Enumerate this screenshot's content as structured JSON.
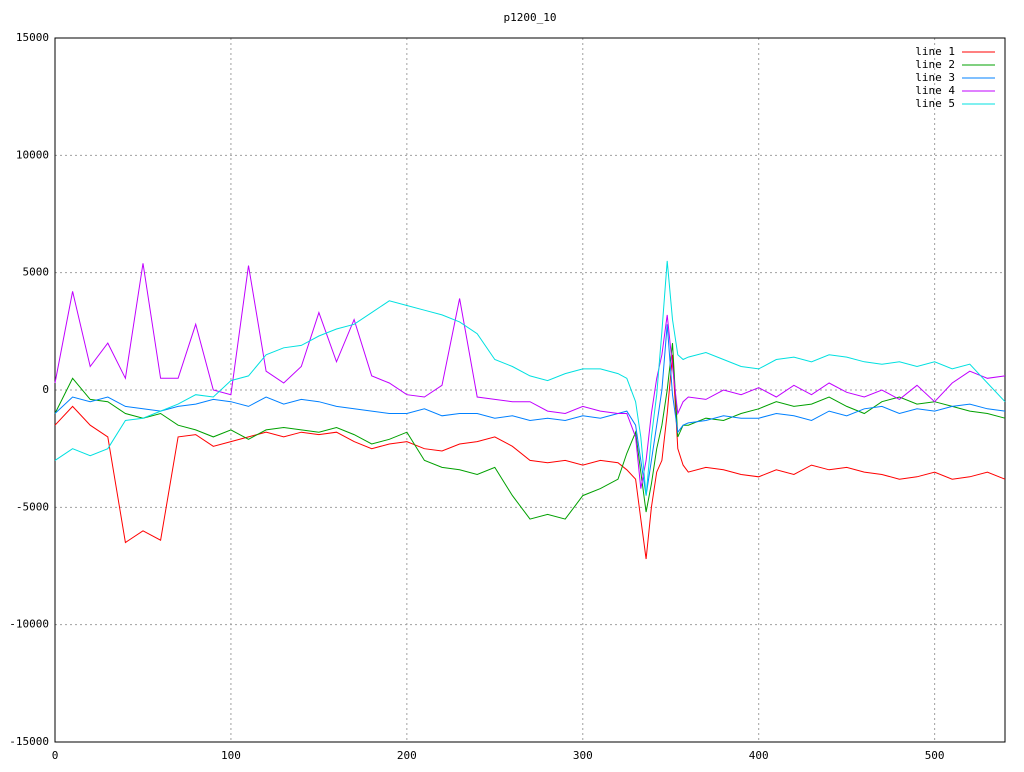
{
  "chart_data": {
    "type": "line",
    "title": "p1200_10",
    "x": [
      0,
      10,
      20,
      30,
      40,
      50,
      60,
      70,
      80,
      90,
      100,
      110,
      120,
      130,
      140,
      150,
      160,
      170,
      180,
      190,
      200,
      210,
      220,
      230,
      240,
      250,
      260,
      270,
      280,
      290,
      300,
      310,
      320,
      325,
      330,
      333,
      336,
      339,
      342,
      345,
      348,
      351,
      354,
      357,
      360,
      370,
      380,
      390,
      400,
      410,
      420,
      430,
      440,
      450,
      460,
      470,
      480,
      490,
      500,
      510,
      520,
      530,
      540
    ],
    "series": [
      {
        "name": "line 1",
        "color": "#ff0000",
        "values": [
          -1500,
          -700,
          -1500,
          -2000,
          -6500,
          -6000,
          -6400,
          -2000,
          -1900,
          -2400,
          -2200,
          -2000,
          -1800,
          -2000,
          -1800,
          -1900,
          -1800,
          -2200,
          -2500,
          -2300,
          -2200,
          -2500,
          -2600,
          -2300,
          -2200,
          -2000,
          -2400,
          -3000,
          -3100,
          -3000,
          -3200,
          -3000,
          -3100,
          -3400,
          -3800,
          -5500,
          -7200,
          -5000,
          -3500,
          -3000,
          -1000,
          1500,
          -2500,
          -3200,
          -3500,
          -3300,
          -3400,
          -3600,
          -3700,
          -3400,
          -3600,
          -3200,
          -3400,
          -3300,
          -3500,
          -3600,
          -3800,
          -3700,
          -3500,
          -3800,
          -3700,
          -3500,
          -3800
        ]
      },
      {
        "name": "line 2",
        "color": "#00a000",
        "values": [
          -1000,
          500,
          -400,
          -500,
          -1000,
          -1200,
          -1000,
          -1500,
          -1700,
          -2000,
          -1700,
          -2100,
          -1700,
          -1600,
          -1700,
          -1800,
          -1600,
          -1900,
          -2300,
          -2100,
          -1800,
          -3000,
          -3300,
          -3400,
          -3600,
          -3300,
          -4500,
          -5500,
          -5300,
          -5500,
          -4500,
          -4200,
          -3800,
          -2700,
          -1800,
          -3500,
          -5200,
          -4000,
          -2500,
          -1500,
          0,
          2000,
          -2000,
          -1500,
          -1500,
          -1200,
          -1300,
          -1000,
          -800,
          -500,
          -700,
          -600,
          -300,
          -700,
          -1000,
          -500,
          -300,
          -600,
          -500,
          -700,
          -900,
          -1000,
          -1200
        ]
      },
      {
        "name": "line 3",
        "color": "#0080ff",
        "values": [
          -1000,
          -300,
          -500,
          -300,
          -700,
          -800,
          -900,
          -700,
          -600,
          -400,
          -500,
          -700,
          -300,
          -600,
          -400,
          -500,
          -700,
          -800,
          -900,
          -1000,
          -1000,
          -800,
          -1100,
          -1000,
          -1000,
          -1200,
          -1100,
          -1300,
          -1200,
          -1300,
          -1100,
          -1200,
          -1000,
          -900,
          -1500,
          -3000,
          -4500,
          -3000,
          -1500,
          0,
          2800,
          -200,
          -1800,
          -1500,
          -1400,
          -1300,
          -1100,
          -1200,
          -1200,
          -1000,
          -1100,
          -1300,
          -900,
          -1100,
          -800,
          -700,
          -1000,
          -800,
          -900,
          -700,
          -600,
          -800,
          -900
        ]
      },
      {
        "name": "line 4",
        "color": "#c000ff",
        "values": [
          300,
          4200,
          1000,
          2000,
          500,
          5400,
          500,
          500,
          2800,
          0,
          -200,
          5300,
          800,
          300,
          1000,
          3300,
          1200,
          3000,
          600,
          300,
          -200,
          -300,
          200,
          3900,
          -300,
          -400,
          -500,
          -500,
          -900,
          -1000,
          -700,
          -900,
          -1000,
          -1000,
          -2000,
          -4200,
          -3000,
          -1000,
          500,
          1500,
          3200,
          1000,
          -1000,
          -500,
          -300,
          -400,
          0,
          -200,
          100,
          -300,
          200,
          -200,
          300,
          -100,
          -300,
          0,
          -400,
          200,
          -500,
          300,
          800,
          500,
          600
        ]
      },
      {
        "name": "line 5",
        "color": "#00e0e0",
        "values": [
          -3000,
          -2500,
          -2800,
          -2500,
          -1300,
          -1200,
          -900,
          -600,
          -200,
          -300,
          400,
          600,
          1500,
          1800,
          1900,
          2300,
          2600,
          2800,
          3300,
          3800,
          3600,
          3400,
          3200,
          2900,
          2400,
          1300,
          1000,
          600,
          400,
          700,
          900,
          900,
          700,
          500,
          -500,
          -2000,
          -4500,
          -2000,
          -200,
          2500,
          5500,
          3000,
          1500,
          1300,
          1400,
          1600,
          1300,
          1000,
          900,
          1300,
          1400,
          1200,
          1500,
          1400,
          1200,
          1100,
          1200,
          1000,
          1200,
          900,
          1100,
          300,
          -500
        ]
      }
    ],
    "xlim": [
      0,
      540
    ],
    "ylim": [
      -15000,
      15000
    ],
    "xticks": [
      0,
      100,
      200,
      300,
      400,
      500
    ],
    "yticks": [
      -15000,
      -10000,
      -5000,
      0,
      5000,
      10000,
      15000
    ],
    "grid": true,
    "legend": "top-right"
  }
}
